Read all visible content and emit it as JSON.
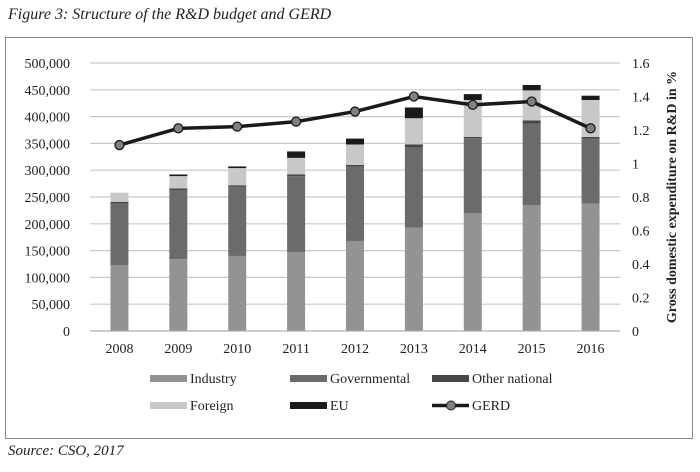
{
  "title": "Figure 3: Structure of the R&D budget and GERD",
  "source": "Source: CSO, 2017",
  "chart_data": {
    "type": "bar",
    "stacked": true,
    "categories": [
      "2008",
      "2009",
      "2010",
      "2011",
      "2012",
      "2013",
      "2014",
      "2015",
      "2016"
    ],
    "series": [
      {
        "name": "Industry",
        "color": "#939393",
        "values": [
          123000,
          134000,
          140000,
          147000,
          168000,
          193000,
          220000,
          235000,
          238000
        ]
      },
      {
        "name": "Governmental",
        "color": "#6b6b6b",
        "values": [
          115000,
          129000,
          129000,
          142000,
          139000,
          149000,
          140000,
          152000,
          121000
        ]
      },
      {
        "name": "Other national",
        "color": "#474747",
        "values": [
          3000,
          3000,
          3000,
          3000,
          3000,
          6000,
          2000,
          6000,
          3000
        ]
      },
      {
        "name": "Foreign",
        "color": "#c8c8c8",
        "values": [
          17000,
          23000,
          32000,
          31000,
          38000,
          49000,
          69000,
          56000,
          69000
        ]
      },
      {
        "name": "EU",
        "color": "#1a1a1a",
        "values": [
          0,
          3000,
          3000,
          12000,
          11000,
          20000,
          11000,
          10000,
          8000
        ]
      }
    ],
    "line_series": {
      "name": "GERD",
      "type": "line",
      "axis": "right",
      "color": "#1a1a1a",
      "marker_color": "#808080",
      "values": [
        1.11,
        1.21,
        1.22,
        1.25,
        1.31,
        1.4,
        1.35,
        1.37,
        1.21
      ]
    },
    "ylim": [
      0,
      500000
    ],
    "y_ticks": [
      "0",
      "50,000",
      "100,000",
      "150,000",
      "200,000",
      "250,000",
      "300,000",
      "350,000",
      "400,000",
      "450,000",
      "500,000"
    ],
    "y2lim": [
      0,
      1.6
    ],
    "y2_ticks": [
      "0",
      "0.2",
      "0.4",
      "0.6",
      "0.8",
      "1",
      "1.2",
      "1.4",
      "1.6"
    ],
    "y2label": "Gross domestic expenditure on R&D in %",
    "xlabel": "",
    "ylabel": "",
    "grid": true,
    "legend": "bottom"
  }
}
